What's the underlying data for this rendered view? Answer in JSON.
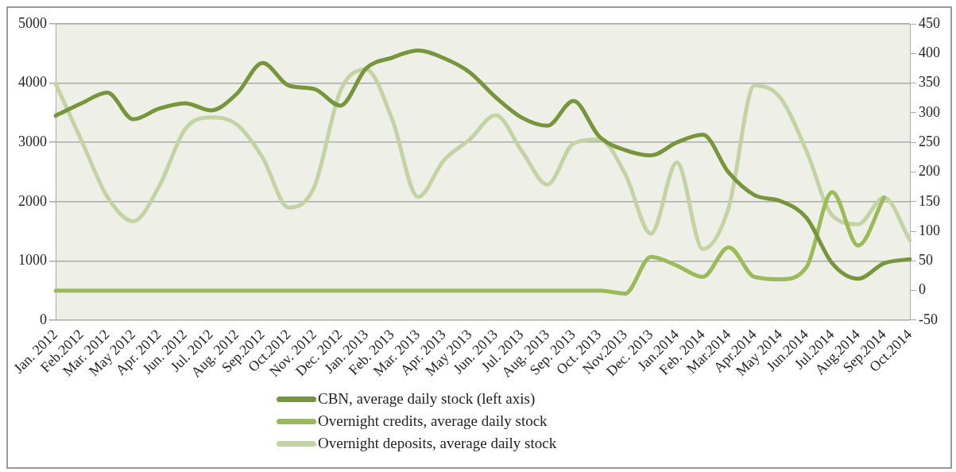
{
  "chart_data": {
    "type": "line",
    "categories": [
      "Jan. 2012",
      "Feb.2012",
      "Mar. 2012",
      "May 2012",
      "Apr. 2012",
      "Jun. 2012",
      "Jul. 2012",
      "Aug. 2012",
      "Sep.2012",
      "Oct.2012",
      "Nov. 2012",
      "Dec. 2012",
      "Jan. 2013",
      "Feb. 2013",
      "Mar. 2013",
      "Apr. 2013",
      "May 2013",
      "Jun. 2013",
      "Jul. 2013",
      "Aug. 2013",
      "Sep. 2013",
      "Oct. 2013",
      "Nov.2013",
      "Dec. 2013",
      "Jan.2014",
      "Feb. 2014",
      "Mar.2014",
      "Apr.2014",
      "May 2014",
      "Jun.2014",
      "Jul.2014",
      "Aug.2014",
      "Sep.2014",
      "Oct.2014"
    ],
    "series": [
      {
        "name": "CBN, average daily stock (left axis)",
        "color": "#77953b",
        "values": [
          3450,
          3660,
          3840,
          3390,
          3570,
          3660,
          3540,
          3820,
          4340,
          3960,
          3900,
          3620,
          4250,
          4430,
          4550,
          4420,
          4180,
          3760,
          3420,
          3280,
          3700,
          3100,
          2870,
          2780,
          3000,
          3130,
          2490,
          2110,
          2010,
          1730,
          960,
          700,
          960,
          1030
        ]
      },
      {
        "name": "Overnight credits, average daily stock",
        "color": "#9bbb59",
        "axis": "y2",
        "values": [
          0,
          0,
          0,
          0,
          0,
          0,
          0,
          0,
          0,
          0,
          0,
          0,
          0,
          0,
          0,
          0,
          0,
          0,
          0,
          0,
          0,
          0,
          -5,
          57,
          42,
          23,
          73,
          23,
          19,
          39,
          166,
          76,
          157,
          null
        ]
      },
      {
        "name": "Overnight deposits, average daily stock",
        "color": "#c3d3a3",
        "axis": "y2",
        "values": [
          349,
          253,
          158,
          117,
          176,
          272,
          292,
          280,
          224,
          140,
          176,
          337,
          373,
          289,
          158,
          220,
          255,
          296,
          236,
          179,
          248,
          255,
          197,
          96,
          216,
          70,
          140,
          346,
          325,
          236,
          127,
          112,
          157,
          85
        ]
      }
    ],
    "ylim": [
      0,
      5000
    ],
    "yticks": [
      0,
      1000,
      2000,
      3000,
      4000,
      5000
    ],
    "y2lim": [
      -50,
      450
    ],
    "y2ticks": [
      -50,
      0,
      50,
      100,
      150,
      200,
      250,
      300,
      350,
      400,
      450
    ],
    "grid": "y",
    "legend": "bottom",
    "marker": "none",
    "line_style": "solid"
  }
}
